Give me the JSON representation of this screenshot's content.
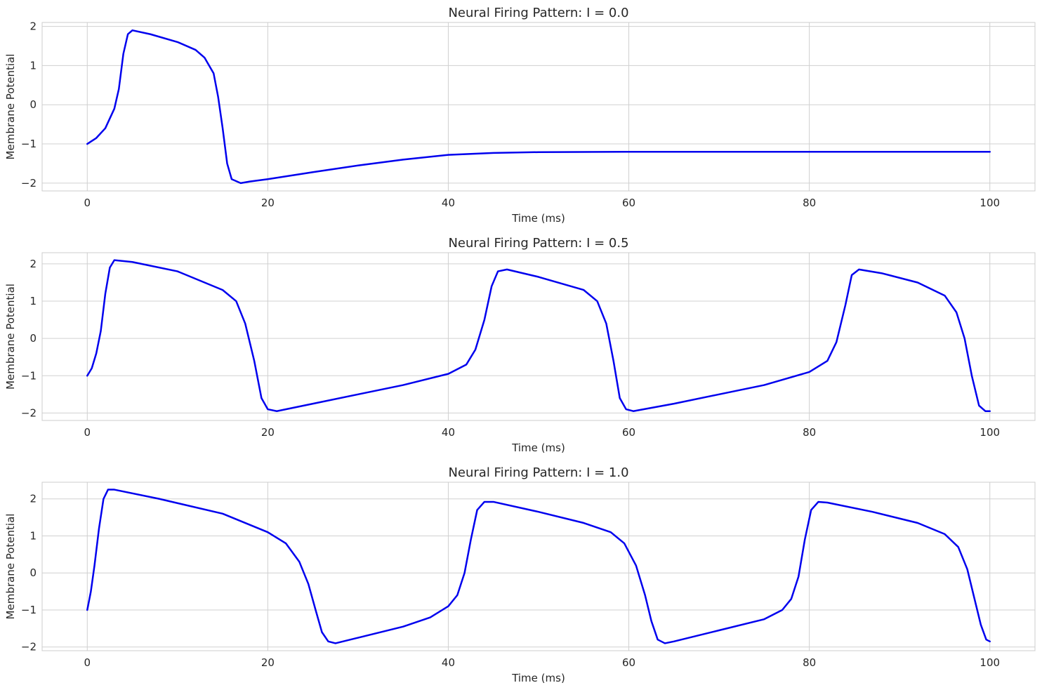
{
  "chart_data": [
    {
      "type": "line",
      "title": "Neural Firing Pattern: I = 0.0",
      "xlabel": "Time (ms)",
      "ylabel": "Membrane Potential",
      "xlim": [
        -5,
        105
      ],
      "ylim": [
        -2.2,
        2.1
      ],
      "xticks": [
        0,
        20,
        40,
        60,
        80,
        100
      ],
      "yticks": [
        -2,
        -1,
        0,
        1,
        2
      ],
      "grid": true,
      "series": [
        {
          "color": "#0000ee",
          "points": [
            [
              0,
              -1.0
            ],
            [
              1,
              -0.85
            ],
            [
              2,
              -0.6
            ],
            [
              3,
              -0.1
            ],
            [
              3.5,
              0.4
            ],
            [
              4,
              1.3
            ],
            [
              4.5,
              1.8
            ],
            [
              5,
              1.9
            ],
            [
              7,
              1.8
            ],
            [
              10,
              1.6
            ],
            [
              12,
              1.4
            ],
            [
              13,
              1.2
            ],
            [
              14,
              0.8
            ],
            [
              14.5,
              0.2
            ],
            [
              15,
              -0.6
            ],
            [
              15.5,
              -1.5
            ],
            [
              16,
              -1.9
            ],
            [
              17,
              -2.0
            ],
            [
              18,
              -1.96
            ],
            [
              20,
              -1.9
            ],
            [
              25,
              -1.72
            ],
            [
              30,
              -1.55
            ],
            [
              35,
              -1.4
            ],
            [
              40,
              -1.28
            ],
            [
              45,
              -1.23
            ],
            [
              50,
              -1.21
            ],
            [
              60,
              -1.2
            ],
            [
              80,
              -1.2
            ],
            [
              100,
              -1.2
            ]
          ]
        }
      ]
    },
    {
      "type": "line",
      "title": "Neural Firing Pattern: I = 0.5",
      "xlabel": "Time (ms)",
      "ylabel": "Membrane Potential",
      "xlim": [
        -5,
        105
      ],
      "ylim": [
        -2.2,
        2.3
      ],
      "xticks": [
        0,
        20,
        40,
        60,
        80,
        100
      ],
      "yticks": [
        -2,
        -1,
        0,
        1,
        2
      ],
      "grid": true,
      "series": [
        {
          "color": "#0000ee",
          "points": [
            [
              0,
              -1.0
            ],
            [
              0.5,
              -0.8
            ],
            [
              1,
              -0.4
            ],
            [
              1.5,
              0.2
            ],
            [
              2,
              1.2
            ],
            [
              2.5,
              1.9
            ],
            [
              3,
              2.1
            ],
            [
              5,
              2.05
            ],
            [
              10,
              1.8
            ],
            [
              15,
              1.3
            ],
            [
              16.5,
              1.0
            ],
            [
              17.5,
              0.4
            ],
            [
              18.5,
              -0.6
            ],
            [
              19.3,
              -1.6
            ],
            [
              20,
              -1.9
            ],
            [
              21,
              -1.95
            ],
            [
              25,
              -1.75
            ],
            [
              30,
              -1.5
            ],
            [
              35,
              -1.25
            ],
            [
              40,
              -0.95
            ],
            [
              42,
              -0.7
            ],
            [
              43,
              -0.3
            ],
            [
              44,
              0.5
            ],
            [
              44.8,
              1.4
            ],
            [
              45.5,
              1.8
            ],
            [
              46.5,
              1.85
            ],
            [
              50,
              1.65
            ],
            [
              55,
              1.3
            ],
            [
              56.5,
              1.0
            ],
            [
              57.5,
              0.4
            ],
            [
              58.3,
              -0.6
            ],
            [
              59,
              -1.6
            ],
            [
              59.7,
              -1.9
            ],
            [
              60.5,
              -1.95
            ],
            [
              65,
              -1.75
            ],
            [
              70,
              -1.5
            ],
            [
              75,
              -1.25
            ],
            [
              80,
              -0.9
            ],
            [
              82,
              -0.6
            ],
            [
              83,
              -0.1
            ],
            [
              84,
              0.9
            ],
            [
              84.7,
              1.7
            ],
            [
              85.5,
              1.85
            ],
            [
              88,
              1.75
            ],
            [
              92,
              1.5
            ],
            [
              95,
              1.15
            ],
            [
              96.3,
              0.7
            ],
            [
              97.2,
              0.0
            ],
            [
              98,
              -1.0
            ],
            [
              98.8,
              -1.8
            ],
            [
              99.5,
              -1.95
            ],
            [
              100,
              -1.95
            ]
          ]
        }
      ]
    },
    {
      "type": "line",
      "title": "Neural Firing Pattern: I = 1.0",
      "xlabel": "Time (ms)",
      "ylabel": "Membrane Potential",
      "xlim": [
        -5,
        105
      ],
      "ylim": [
        -2.1,
        2.45
      ],
      "xticks": [
        0,
        20,
        40,
        60,
        80,
        100
      ],
      "yticks": [
        -2,
        -1,
        0,
        1,
        2
      ],
      "grid": true,
      "series": [
        {
          "color": "#0000ee",
          "points": [
            [
              0,
              -1.0
            ],
            [
              0.4,
              -0.5
            ],
            [
              0.8,
              0.2
            ],
            [
              1.3,
              1.2
            ],
            [
              1.8,
              2.0
            ],
            [
              2.3,
              2.25
            ],
            [
              3,
              2.25
            ],
            [
              8,
              2.0
            ],
            [
              15,
              1.6
            ],
            [
              20,
              1.1
            ],
            [
              22,
              0.8
            ],
            [
              23.5,
              0.3
            ],
            [
              24.5,
              -0.3
            ],
            [
              25.3,
              -1.0
            ],
            [
              26,
              -1.6
            ],
            [
              26.7,
              -1.85
            ],
            [
              27.5,
              -1.9
            ],
            [
              30,
              -1.75
            ],
            [
              35,
              -1.45
            ],
            [
              38,
              -1.2
            ],
            [
              40,
              -0.9
            ],
            [
              41,
              -0.6
            ],
            [
              41.8,
              0.0
            ],
            [
              42.5,
              0.9
            ],
            [
              43.2,
              1.7
            ],
            [
              44,
              1.92
            ],
            [
              45,
              1.92
            ],
            [
              50,
              1.65
            ],
            [
              55,
              1.35
            ],
            [
              58,
              1.1
            ],
            [
              59.5,
              0.8
            ],
            [
              60.8,
              0.2
            ],
            [
              61.8,
              -0.6
            ],
            [
              62.5,
              -1.3
            ],
            [
              63.2,
              -1.8
            ],
            [
              64,
              -1.9
            ],
            [
              65,
              -1.85
            ],
            [
              70,
              -1.55
            ],
            [
              75,
              -1.25
            ],
            [
              77,
              -1.0
            ],
            [
              78,
              -0.7
            ],
            [
              78.8,
              -0.1
            ],
            [
              79.5,
              0.9
            ],
            [
              80.2,
              1.7
            ],
            [
              81,
              1.92
            ],
            [
              82,
              1.9
            ],
            [
              87,
              1.65
            ],
            [
              92,
              1.35
            ],
            [
              95,
              1.05
            ],
            [
              96.5,
              0.7
            ],
            [
              97.5,
              0.1
            ],
            [
              98.3,
              -0.7
            ],
            [
              99,
              -1.4
            ],
            [
              99.6,
              -1.8
            ],
            [
              100,
              -1.85
            ]
          ]
        }
      ]
    }
  ]
}
